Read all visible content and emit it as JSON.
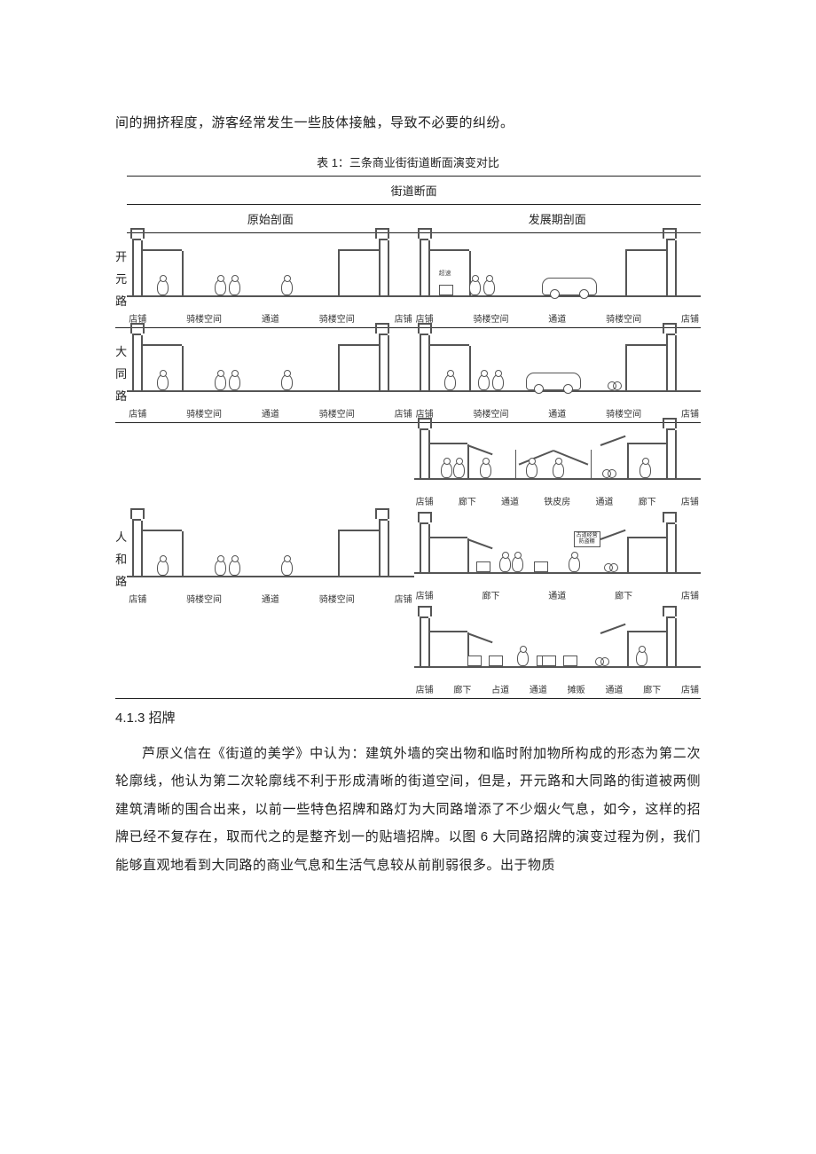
{
  "intro_line": "间的拥挤程度，游客经常发生一些肢体接触，导致不必要的纠纷。",
  "table": {
    "caption": "表 1：三条商业街街道断面演变对比",
    "header_main": "街道断面",
    "header_left": "原始剖面",
    "header_right": "发展期剖面",
    "rows": [
      {
        "name": "开元路",
        "left_labels": [
          "店铺",
          "骑楼空间",
          "通道",
          "骑楼空间",
          "店铺"
        ],
        "right_variants": [
          {
            "labels": [
              "店铺",
              "骑楼空间",
              "通道",
              "骑楼空间",
              "店铺"
            ],
            "tiny": "超速"
          }
        ]
      },
      {
        "name": "大同路",
        "left_labels": [
          "店铺",
          "骑楼空间",
          "通道",
          "骑楼空间",
          "店铺"
        ],
        "right_variants": [
          {
            "labels": [
              "店铺",
              "骑楼空间",
              "通道",
              "骑楼空间",
              "店铺"
            ]
          }
        ]
      },
      {
        "name": "人和路",
        "left_labels": [
          "店铺",
          "骑楼空间",
          "通道",
          "骑楼空间",
          "店铺"
        ],
        "right_variants": [
          {
            "labels": [
              "店铺",
              "廊下",
              "通道",
              "铁皮房",
              "通道",
              "廊下",
              "店铺"
            ]
          },
          {
            "labels": [
              "店铺",
              "廊下",
              "通道",
              "廊下",
              "店铺"
            ],
            "sign": "古道经营\\n防盗棚"
          },
          {
            "labels": [
              "店铺",
              "廊下",
              "占道",
              "通道",
              "摊贩",
              "通道",
              "廊下",
              "店铺"
            ]
          }
        ]
      }
    ]
  },
  "heading": "4.1.3  招牌",
  "para": "芦原义信在《街道的美学》中认为：建筑外墙的突出物和临时附加物所构成的形态为第二次轮廓线，他认为第二次轮廓线不利于形成清晰的街道空间，但是，开元路和大同路的街道被两侧建筑清晰的围合出来，以前一些特色招牌和路灯为大同路增添了不少烟火气息，如今，这样的招牌已经不复存在，取而代之的是整齐划一的贴墙招牌。以图 6 大同路招牌的演变过程为例，我们能够直观地看到大同路的商业气息和生活气息较从前削弱很多。出于物质",
  "colors": {
    "text": "#222222",
    "line": "#555555",
    "bg": "#ffffff"
  }
}
